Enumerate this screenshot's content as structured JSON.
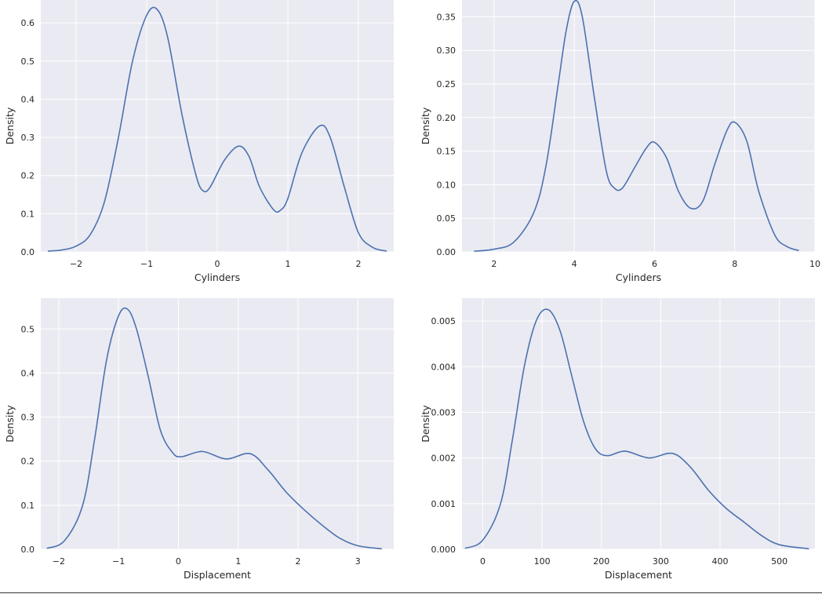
{
  "chart_data": [
    {
      "type": "line",
      "xlabel": "Cylinders",
      "ylabel": "Density",
      "xlim": [
        -2.5,
        2.5
      ],
      "ylim": [
        0,
        0.66
      ],
      "xticks": [
        -2,
        -1,
        0,
        1,
        2
      ],
      "xtick_labels": [
        "−2",
        "−1",
        "0",
        "1",
        "2"
      ],
      "yticks": [
        0.0,
        0.1,
        0.2,
        0.3,
        0.4,
        0.5,
        0.6
      ],
      "ytick_labels": [
        "0.0",
        "0.1",
        "0.2",
        "0.3",
        "0.4",
        "0.5",
        "0.6"
      ],
      "grid": true,
      "color": "#4c72b0",
      "x": [
        -2.4,
        -2.2,
        -2.0,
        -1.8,
        -1.6,
        -1.4,
        -1.2,
        -1.0,
        -0.85,
        -0.7,
        -0.5,
        -0.3,
        -0.2,
        -0.1,
        0.1,
        0.3,
        0.45,
        0.6,
        0.8,
        0.9,
        1.0,
        1.2,
        1.45,
        1.6,
        1.8,
        2.0,
        2.2,
        2.4
      ],
      "y": [
        0.002,
        0.005,
        0.015,
        0.045,
        0.13,
        0.3,
        0.5,
        0.62,
        0.635,
        0.56,
        0.36,
        0.2,
        0.16,
        0.17,
        0.24,
        0.277,
        0.25,
        0.17,
        0.11,
        0.11,
        0.14,
        0.26,
        0.33,
        0.3,
        0.17,
        0.05,
        0.012,
        0.002
      ]
    },
    {
      "type": "line",
      "xlabel": "Cylinders",
      "ylabel": "Density",
      "xlim": [
        1.2,
        10
      ],
      "ylim": [
        0,
        0.375
      ],
      "xticks": [
        2,
        4,
        6,
        8,
        10
      ],
      "xtick_labels": [
        "2",
        "4",
        "6",
        "8",
        "10"
      ],
      "yticks": [
        0.0,
        0.05,
        0.1,
        0.15,
        0.2,
        0.25,
        0.3,
        0.35
      ],
      "ytick_labels": [
        "0.00",
        "0.05",
        "0.10",
        "0.15",
        "0.20",
        "0.25",
        "0.30",
        "0.35"
      ],
      "grid": true,
      "color": "#4c72b0",
      "x": [
        1.5,
        2.0,
        2.5,
        3.0,
        3.3,
        3.6,
        3.8,
        4.0,
        4.2,
        4.5,
        4.8,
        5.0,
        5.2,
        5.5,
        5.8,
        6.0,
        6.3,
        6.6,
        6.9,
        7.2,
        7.5,
        7.8,
        8.0,
        8.3,
        8.6,
        9.0,
        9.3,
        9.6
      ],
      "y": [
        0.001,
        0.004,
        0.015,
        0.06,
        0.13,
        0.25,
        0.33,
        0.373,
        0.35,
        0.23,
        0.12,
        0.095,
        0.095,
        0.125,
        0.155,
        0.163,
        0.14,
        0.09,
        0.065,
        0.075,
        0.13,
        0.18,
        0.193,
        0.165,
        0.09,
        0.025,
        0.008,
        0.002
      ]
    },
    {
      "type": "line",
      "xlabel": "Displacement",
      "ylabel": "Density",
      "xlim": [
        -2.3,
        3.6
      ],
      "ylim": [
        0,
        0.57
      ],
      "xticks": [
        -2,
        -1,
        0,
        1,
        2,
        3
      ],
      "xtick_labels": [
        "−2",
        "−1",
        "0",
        "1",
        "2",
        "3"
      ],
      "yticks": [
        0.0,
        0.1,
        0.2,
        0.3,
        0.4,
        0.5
      ],
      "ytick_labels": [
        "0.0",
        "0.1",
        "0.2",
        "0.3",
        "0.4",
        "0.5"
      ],
      "grid": true,
      "color": "#4c72b0",
      "x": [
        -2.2,
        -1.9,
        -1.6,
        -1.4,
        -1.2,
        -1.0,
        -0.85,
        -0.7,
        -0.5,
        -0.3,
        -0.1,
        0.05,
        0.4,
        0.8,
        1.2,
        1.5,
        1.8,
        2.1,
        2.4,
        2.7,
        3.0,
        3.4
      ],
      "y": [
        0.002,
        0.02,
        0.1,
        0.25,
        0.43,
        0.53,
        0.545,
        0.5,
        0.39,
        0.27,
        0.22,
        0.21,
        0.222,
        0.205,
        0.217,
        0.18,
        0.13,
        0.09,
        0.055,
        0.025,
        0.008,
        0.001
      ]
    },
    {
      "type": "line",
      "xlabel": "Displacement",
      "ylabel": "Density",
      "xlim": [
        -35,
        560
      ],
      "ylim": [
        0,
        0.0055
      ],
      "xticks": [
        0,
        100,
        200,
        300,
        400,
        500
      ],
      "xtick_labels": [
        "0",
        "100",
        "200",
        "300",
        "400",
        "500"
      ],
      "yticks": [
        0.0,
        0.001,
        0.002,
        0.003,
        0.004,
        0.005
      ],
      "ytick_labels": [
        "0.000",
        "0.001",
        "0.002",
        "0.003",
        "0.004",
        "0.005"
      ],
      "grid": true,
      "color": "#4c72b0",
      "x": [
        -30,
        0,
        30,
        50,
        70,
        90,
        110,
        130,
        150,
        170,
        190,
        210,
        240,
        280,
        320,
        350,
        380,
        410,
        440,
        470,
        500,
        550
      ],
      "y": [
        2e-05,
        0.0002,
        0.001,
        0.0024,
        0.004,
        0.005,
        0.00525,
        0.0048,
        0.0038,
        0.0028,
        0.0022,
        0.00205,
        0.00215,
        0.002,
        0.0021,
        0.0018,
        0.0013,
        0.0009,
        0.0006,
        0.0003,
        0.0001,
        1e-05
      ]
    }
  ]
}
